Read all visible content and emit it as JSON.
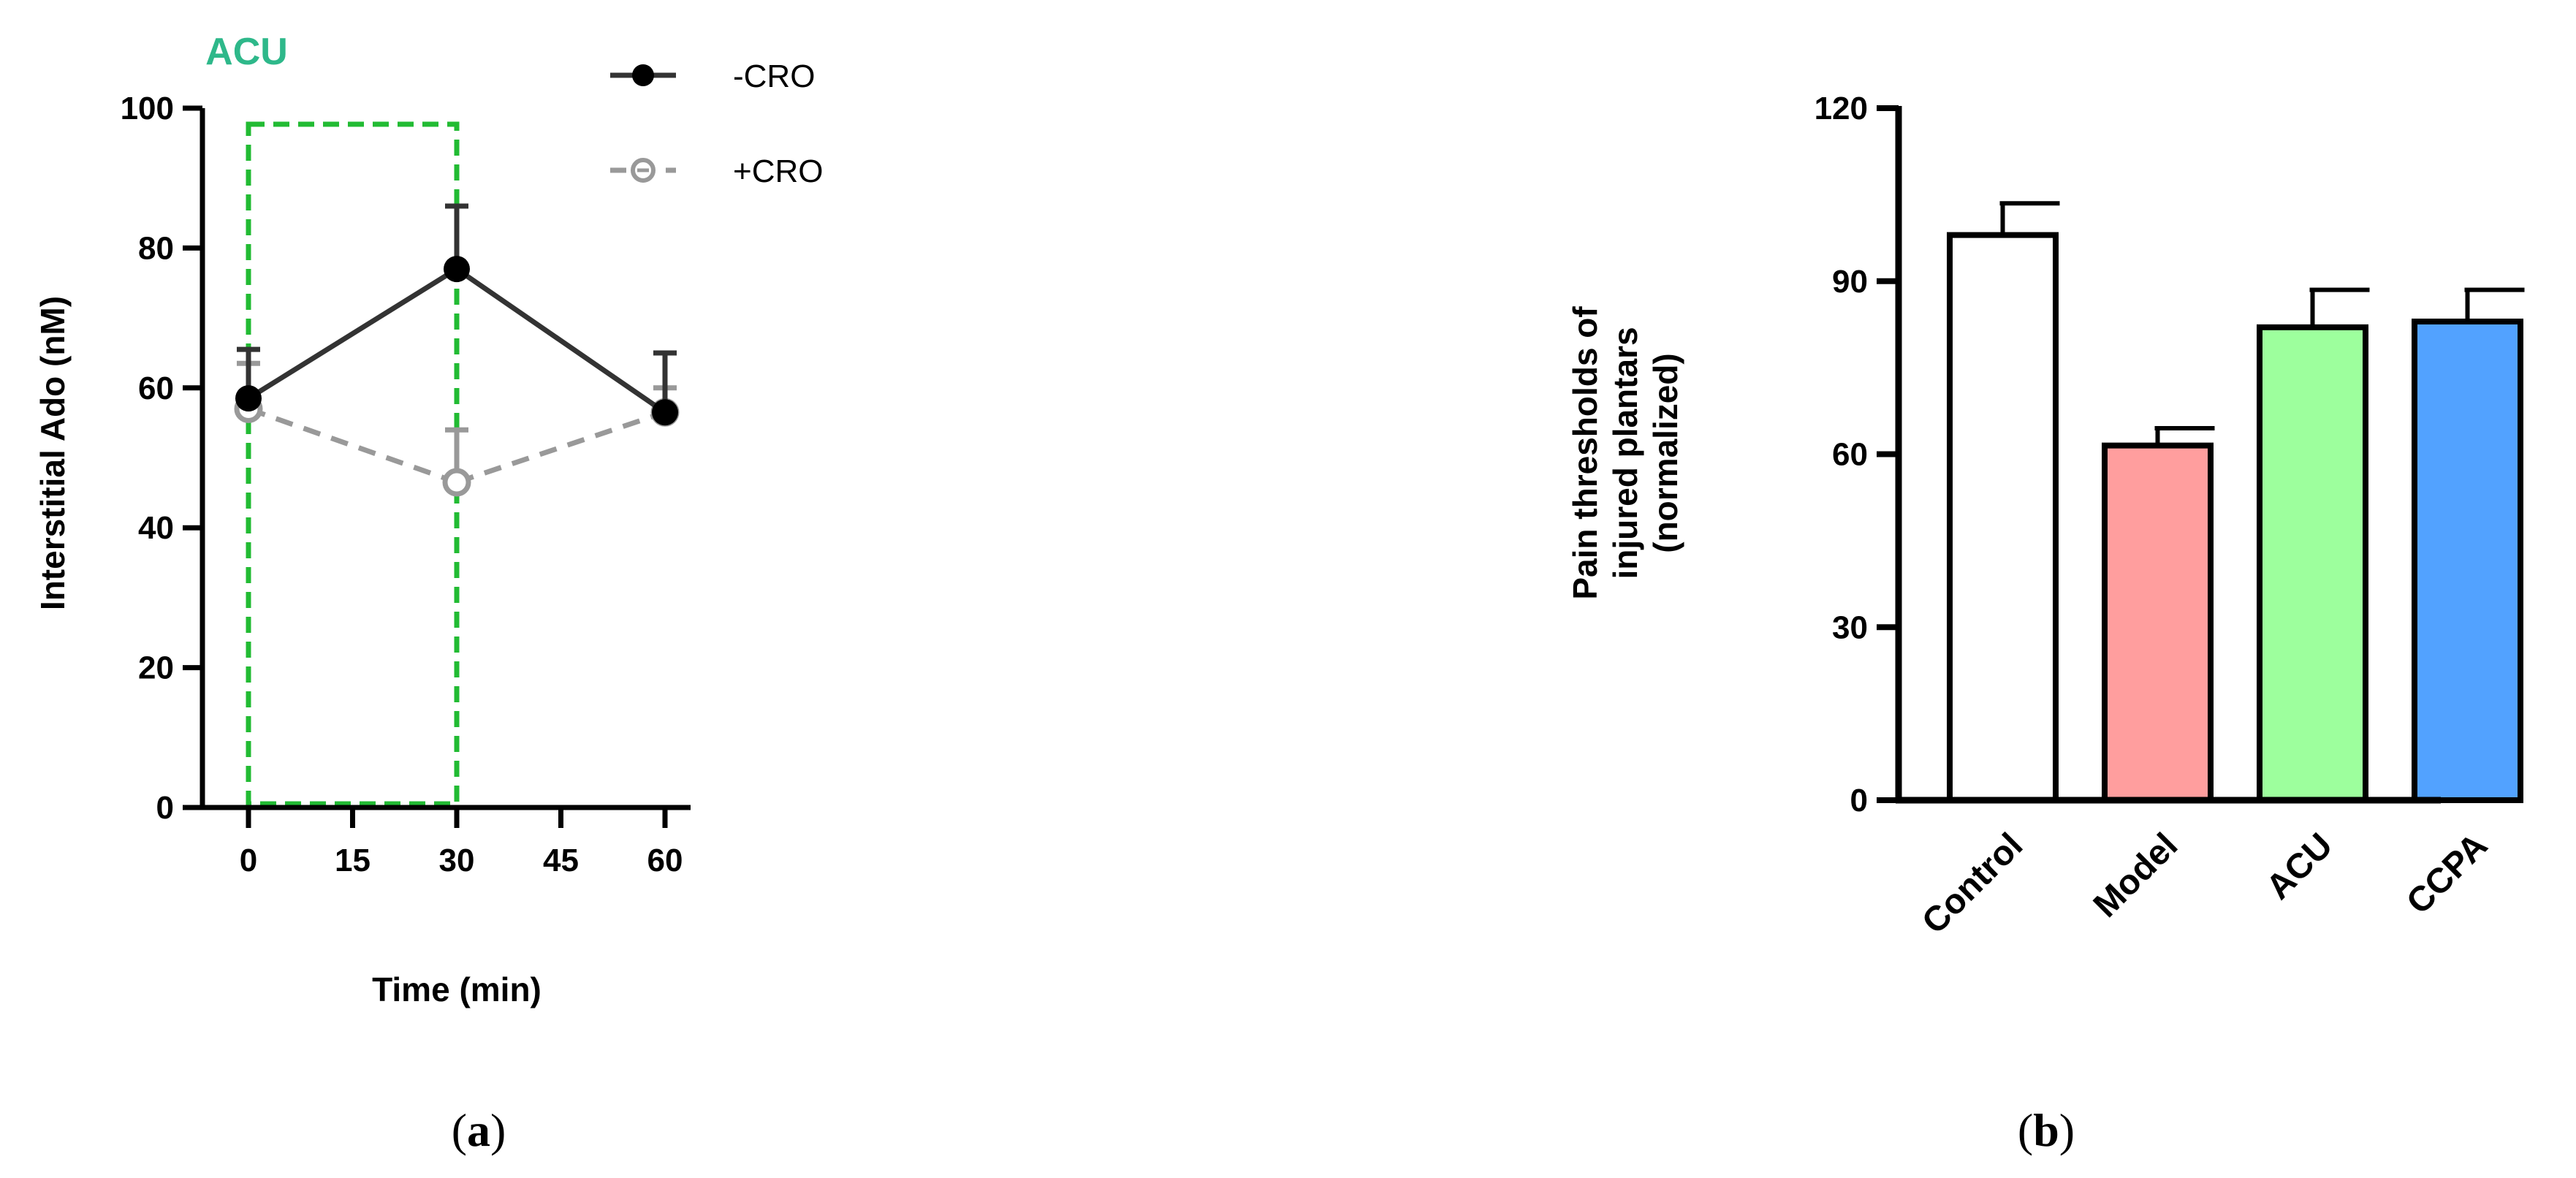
{
  "chart_data": [
    {
      "panel": "a",
      "type": "line",
      "xlabel": "Time (min)",
      "ylabel": "Interstitial Ado (nM)",
      "xlim": [
        0,
        60
      ],
      "ylim": [
        0,
        100
      ],
      "x_ticks": [
        "0",
        "15",
        "30",
        "45",
        "60"
      ],
      "y_ticks": [
        "0",
        "20",
        "40",
        "60",
        "80",
        "100"
      ],
      "annotation": "ACU",
      "highlight_range_x": [
        0,
        30
      ],
      "series": [
        {
          "name": "-CRO",
          "x": [
            0,
            30,
            60
          ],
          "y": [
            58.5,
            77,
            56.5
          ],
          "error": [
            7,
            9,
            8.5
          ],
          "color": "#333333",
          "marker": "filled-circle",
          "line": "solid"
        },
        {
          "name": "+CRO",
          "x": [
            0,
            30,
            60
          ],
          "y": [
            57,
            46.5,
            56.5
          ],
          "error": [
            6.5,
            7.5,
            3.5
          ],
          "color": "#999999",
          "marker": "open-circle",
          "line": "dashed"
        }
      ],
      "legend_position": "top-right",
      "grid": false
    },
    {
      "panel": "b",
      "type": "bar",
      "ylabel_lines": [
        "Pain thresholds of",
        "injured plantars",
        "(normalized)"
      ],
      "ylim": [
        0,
        120
      ],
      "y_ticks": [
        "0",
        "30",
        "60",
        "90",
        "120"
      ],
      "categories": [
        "Control",
        "Model",
        "ACU",
        "CCPA"
      ],
      "values": [
        98,
        61.5,
        82,
        83
      ],
      "error": [
        5.5,
        3,
        6.5,
        5.5
      ],
      "colors": [
        "#ffffff",
        "#ff9e9e",
        "#9dff9d",
        "#52a2ff"
      ],
      "grid": false
    }
  ],
  "panel_labels": [
    {
      "prefix": "(",
      "letter": "a",
      "suffix": ")"
    },
    {
      "prefix": "(",
      "letter": "b",
      "suffix": ")"
    }
  ],
  "colors": {
    "acu_box": "#22bb33",
    "acu_text": "#2eb88a"
  }
}
